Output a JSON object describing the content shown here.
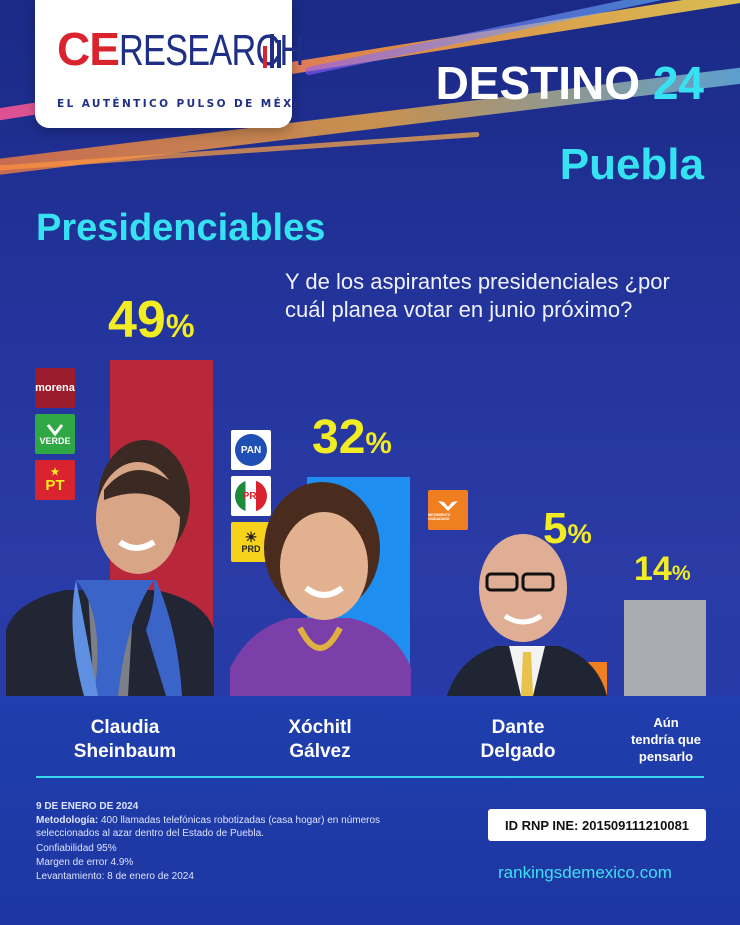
{
  "brand": {
    "logo_ce": "CE",
    "logo_research": "RESEARCH",
    "tagline": "EL AUTÉNTICO PULSO DE MÉXICO"
  },
  "header": {
    "destino_label": "DESTINO",
    "destino_number": "24",
    "state": "Puebla",
    "section": "Presidenciables"
  },
  "question": "Y de los aspirantes presidenciales ¿por cuál planea votar en junio próximo?",
  "colors": {
    "background": "#23349c",
    "accent_cyan": "#36e2f2",
    "percent_yellow": "#f2ec23",
    "sheinbaum_bar": "#b8283a",
    "galvez_bar": "#1e8ff0",
    "delgado_bar": "#f07f22",
    "undecided_bar": "#a9aab2"
  },
  "parties": {
    "sheinbaum": [
      "morena",
      "VERDE",
      "PT"
    ],
    "galvez": [
      "PAN",
      "PRI",
      "PRD"
    ],
    "delgado": [
      "MOVIMIENTO CIUDADANO"
    ]
  },
  "chart_data": {
    "type": "bar",
    "categories": [
      "Claudia Sheinbaum",
      "Xóchitl Gálvez",
      "Dante Delgado",
      "Aún tendría que pensarlo"
    ],
    "values": [
      49,
      32,
      5,
      14
    ],
    "value_labels": [
      "49",
      "32",
      "5",
      "14"
    ],
    "unit": "%",
    "ylim": [
      0,
      49
    ]
  },
  "candidates": [
    {
      "name_line1": "Claudia",
      "name_line2": "Sheinbaum"
    },
    {
      "name_line1": "Xóchitl",
      "name_line2": "Gálvez"
    },
    {
      "name_line1": "Dante",
      "name_line2": "Delgado"
    },
    {
      "name_line1": "Aún",
      "name_line2": "tendría que",
      "name_line3": "pensarlo"
    }
  ],
  "footer": {
    "date": "9 DE ENERO DE 2024",
    "method_label": "Metodología:",
    "method_text": "400 llamadas telefónicas robotizadas (casa hogar) en números seleccionados al azar dentro del Estado de Puebla.",
    "confidence": "Confiabilidad 95%",
    "margin": "Margen de error 4.9%",
    "survey_date": "Levantamiento: 8 de enero de 2024",
    "rnp_label": "ID RNP INE:",
    "rnp_id": "201509111210081",
    "url": "rankingsdemexico.com"
  }
}
